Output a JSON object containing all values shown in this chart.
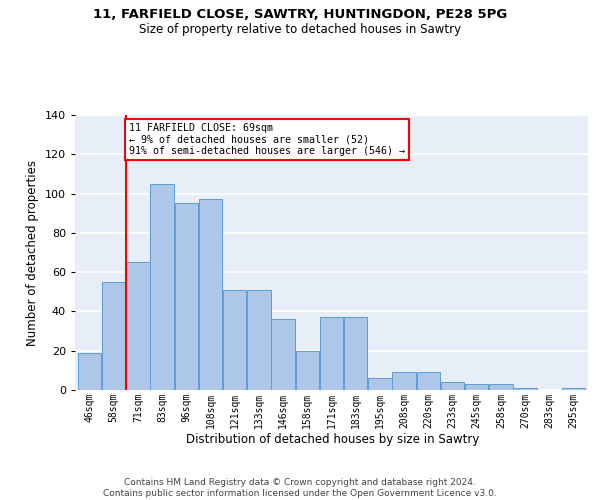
{
  "title1": "11, FARFIELD CLOSE, SAWTRY, HUNTINGDON, PE28 5PG",
  "title2": "Size of property relative to detached houses in Sawtry",
  "xlabel": "Distribution of detached houses by size in Sawtry",
  "ylabel": "Number of detached properties",
  "categories": [
    "46sqm",
    "58sqm",
    "71sqm",
    "83sqm",
    "96sqm",
    "108sqm",
    "121sqm",
    "133sqm",
    "146sqm",
    "158sqm",
    "171sqm",
    "183sqm",
    "195sqm",
    "208sqm",
    "220sqm",
    "233sqm",
    "245sqm",
    "258sqm",
    "270sqm",
    "283sqm",
    "295sqm"
  ],
  "values": [
    19,
    55,
    65,
    105,
    95,
    97,
    51,
    51,
    36,
    20,
    37,
    37,
    6,
    9,
    9,
    4,
    3,
    3,
    1,
    0,
    1
  ],
  "bar_color": "#aec6e8",
  "bar_edge_color": "#5a9fd4",
  "vline_x": 1.5,
  "vline_color": "red",
  "annotation_text": "11 FARFIELD CLOSE: 69sqm\n← 9% of detached houses are smaller (52)\n91% of semi-detached houses are larger (546) →",
  "annotation_box_color": "white",
  "annotation_box_edge": "red",
  "footer": "Contains HM Land Registry data © Crown copyright and database right 2024.\nContains public sector information licensed under the Open Government Licence v3.0.",
  "ylim": [
    0,
    140
  ],
  "bg_color": "#e8eef8",
  "grid_color": "#ffffff",
  "title1_fontsize": 9.5,
  "title2_fontsize": 8.5,
  "ylabel_fontsize": 8.5,
  "xlabel_fontsize": 8.5,
  "tick_fontsize": 7,
  "footer_fontsize": 6.5
}
